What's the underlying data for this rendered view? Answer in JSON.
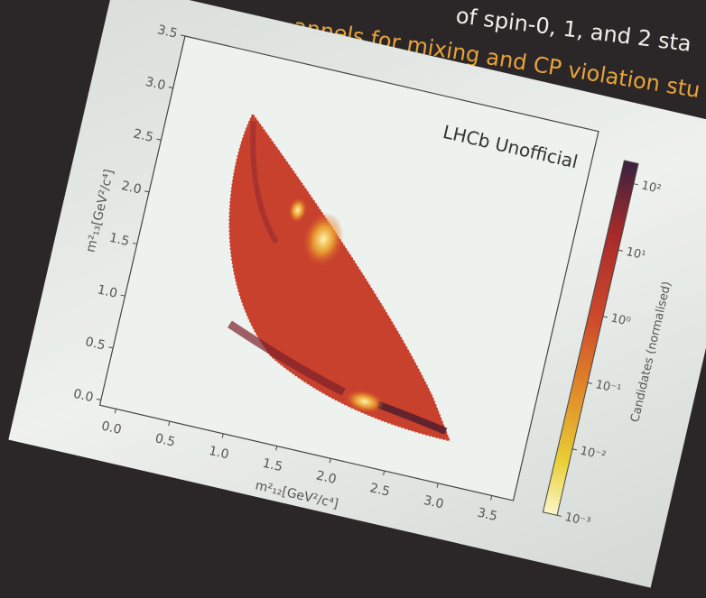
{
  "header": {
    "line1": "of spin-0, 1, and 2 sta",
    "line2": "annels for mixing and CP violation stu"
  },
  "chart_data": {
    "type": "dalitz",
    "annotation": "LHCb Unofficial",
    "x_label": "m²₁₂[GeV²/c⁴]",
    "y_label": "m²₁₃[GeV²/c⁴]",
    "xlim": [
      -0.15,
      3.7
    ],
    "ylim": [
      -0.05,
      3.5
    ],
    "xticks": [
      {
        "value": 0,
        "label": "0.0"
      },
      {
        "value": 0.5,
        "label": "0.5"
      },
      {
        "value": 1,
        "label": "1.0"
      },
      {
        "value": 1.5,
        "label": "1.5"
      },
      {
        "value": 2,
        "label": "2.0"
      },
      {
        "value": 2.5,
        "label": "2.5"
      },
      {
        "value": 3,
        "label": "3.0"
      },
      {
        "value": 3.5,
        "label": "3.5"
      }
    ],
    "yticks": [
      {
        "value": 0,
        "label": "0.0"
      },
      {
        "value": 0.5,
        "label": "0.5"
      },
      {
        "value": 1,
        "label": "1.0"
      },
      {
        "value": 1.5,
        "label": "1.5"
      },
      {
        "value": 2,
        "label": "2.0"
      },
      {
        "value": 2.5,
        "label": "2.5"
      },
      {
        "value": 3,
        "label": "3.0"
      },
      {
        "value": 3.5,
        "label": "3.5"
      }
    ],
    "colorbar": {
      "label": "Candidates (normalised)",
      "scale": "log",
      "clim": [
        0.001,
        200
      ],
      "ticks": [
        {
          "value": 0.001,
          "label": "10⁻³"
        },
        {
          "value": 0.01,
          "label": "10⁻²"
        },
        {
          "value": 0.1,
          "label": "10⁻¹"
        },
        {
          "value": 1,
          "label": "10⁰"
        },
        {
          "value": 10,
          "label": "10¹"
        },
        {
          "value": 100,
          "label": "10²"
        }
      ]
    }
  }
}
